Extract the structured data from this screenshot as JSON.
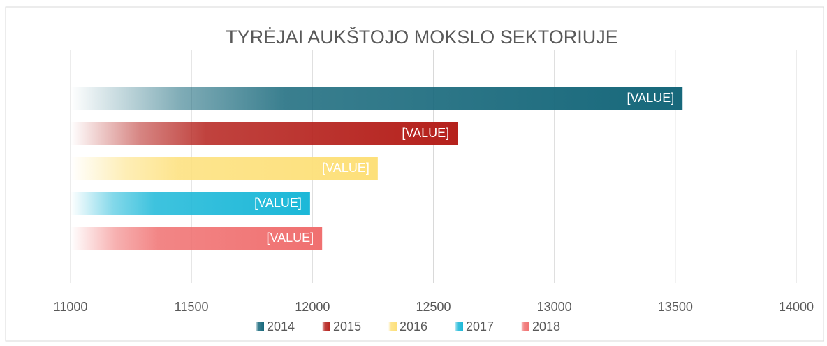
{
  "chart_data": {
    "type": "bar",
    "orientation": "horizontal",
    "title": "TYRĖJAI AUKŠTOJO MOKSLO SEKTORIUJE",
    "series": [
      {
        "name": "2014",
        "color": "#17687b",
        "values": [
          13530
        ],
        "value_labels": [
          "[VALUE]"
        ]
      },
      {
        "name": "2015",
        "color": "#b5211c",
        "values": [
          12600
        ],
        "value_labels": [
          "[VALUE]"
        ]
      },
      {
        "name": "2016",
        "color": "#fde07a",
        "values": [
          12270
        ],
        "value_labels": [
          "[VALUE]"
        ]
      },
      {
        "name": "2017",
        "color": "#1cb8d8",
        "values": [
          11990
        ],
        "value_labels": [
          "[VALUE]"
        ]
      },
      {
        "name": "2018",
        "color": "#f07070",
        "values": [
          12040
        ],
        "value_labels": [
          "[VALUE]"
        ]
      }
    ],
    "xlim": [
      11000,
      14000
    ],
    "xticks": [
      11000,
      11500,
      12000,
      12500,
      13000,
      13500,
      14000
    ],
    "grid": true,
    "legend": "bottom"
  }
}
